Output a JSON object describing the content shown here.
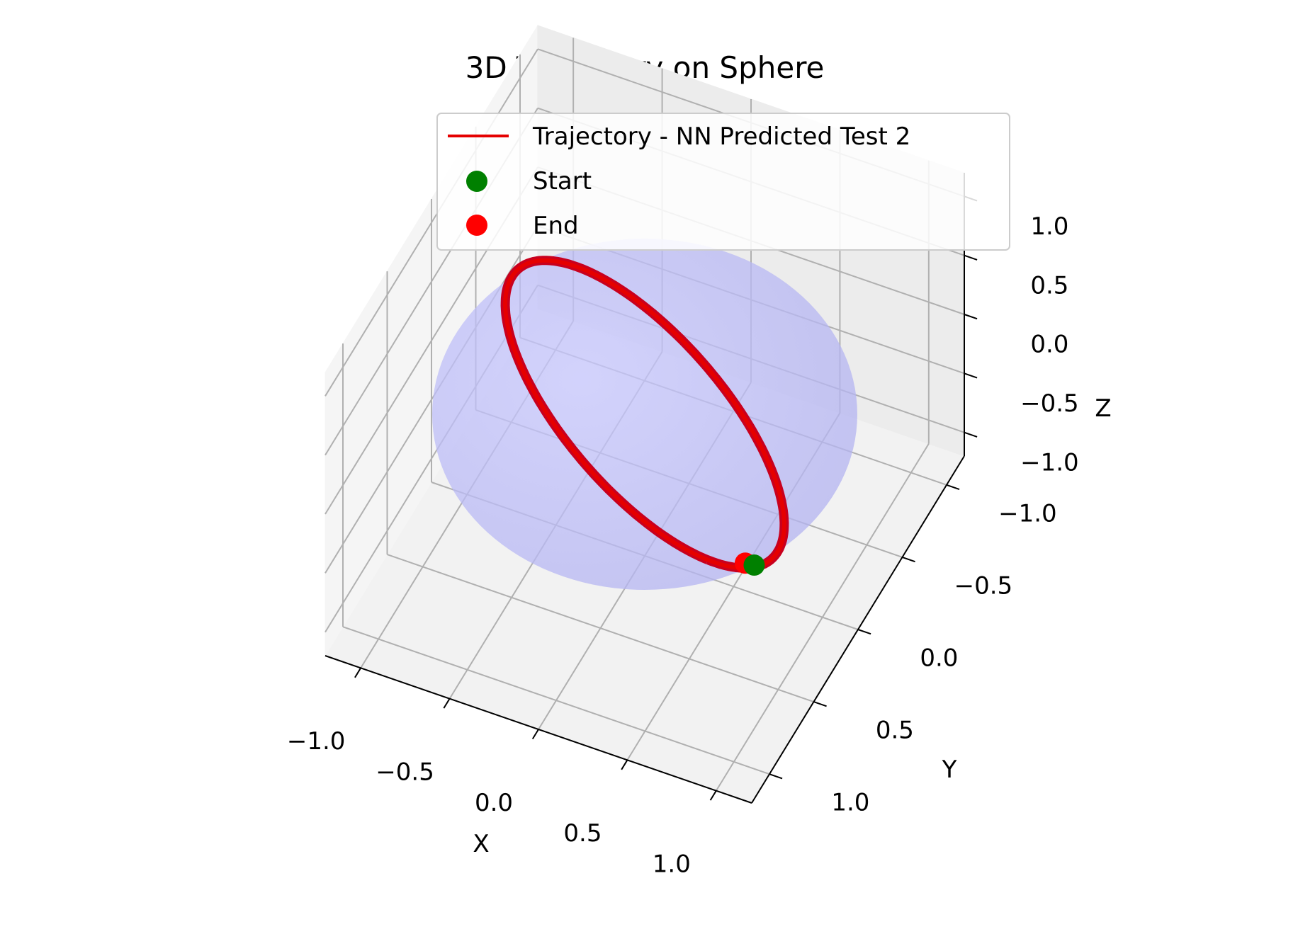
{
  "chart_data": {
    "type": "scatter",
    "projection": "3d",
    "title": "3D Trajectory on Sphere",
    "xlabel": "X",
    "ylabel": "Y",
    "zlabel": "Z",
    "xlim": [
      -1.2,
      1.2
    ],
    "ylim": [
      -1.2,
      1.2
    ],
    "zlim": [
      -1.2,
      1.2
    ],
    "xticks": [
      -1.0,
      -0.5,
      0.0,
      0.5,
      1.0
    ],
    "yticks": [
      -1.0,
      -0.5,
      0.0,
      0.5,
      1.0
    ],
    "zticks": [
      -1.0,
      -0.5,
      0.0,
      0.5,
      1.0
    ],
    "xtick_labels": [
      "−1.0",
      "−0.5",
      "0.0",
      "0.5",
      "1.0"
    ],
    "ytick_labels": [
      "−1.0",
      "−0.5",
      "0.0",
      "0.5",
      "1.0"
    ],
    "ztick_labels": [
      "−1.0",
      "−0.5",
      "0.0",
      "0.5",
      "1.0"
    ],
    "grid": true,
    "legend_position": "top-right",
    "sphere": {
      "radius": 1.0,
      "center": [
        0,
        0,
        0
      ],
      "color": "#9999ff",
      "alpha": 0.3
    },
    "series": [
      {
        "name": "Trajectory - NN Predicted Test 2",
        "kind": "line",
        "color": "#e50000",
        "great_circle": {
          "center": [
            0,
            0,
            0
          ],
          "radius": 1.0,
          "normal": [
            0.53,
            -0.53,
            0.66
          ],
          "samples": 180
        }
      },
      {
        "name": "Start",
        "kind": "point",
        "color": "#008000",
        "x": 0.83,
        "y": 0.43,
        "z": -0.32
      },
      {
        "name": "End",
        "kind": "point",
        "color": "#ff0000",
        "x": 0.8,
        "y": 0.47,
        "z": -0.27
      }
    ]
  }
}
